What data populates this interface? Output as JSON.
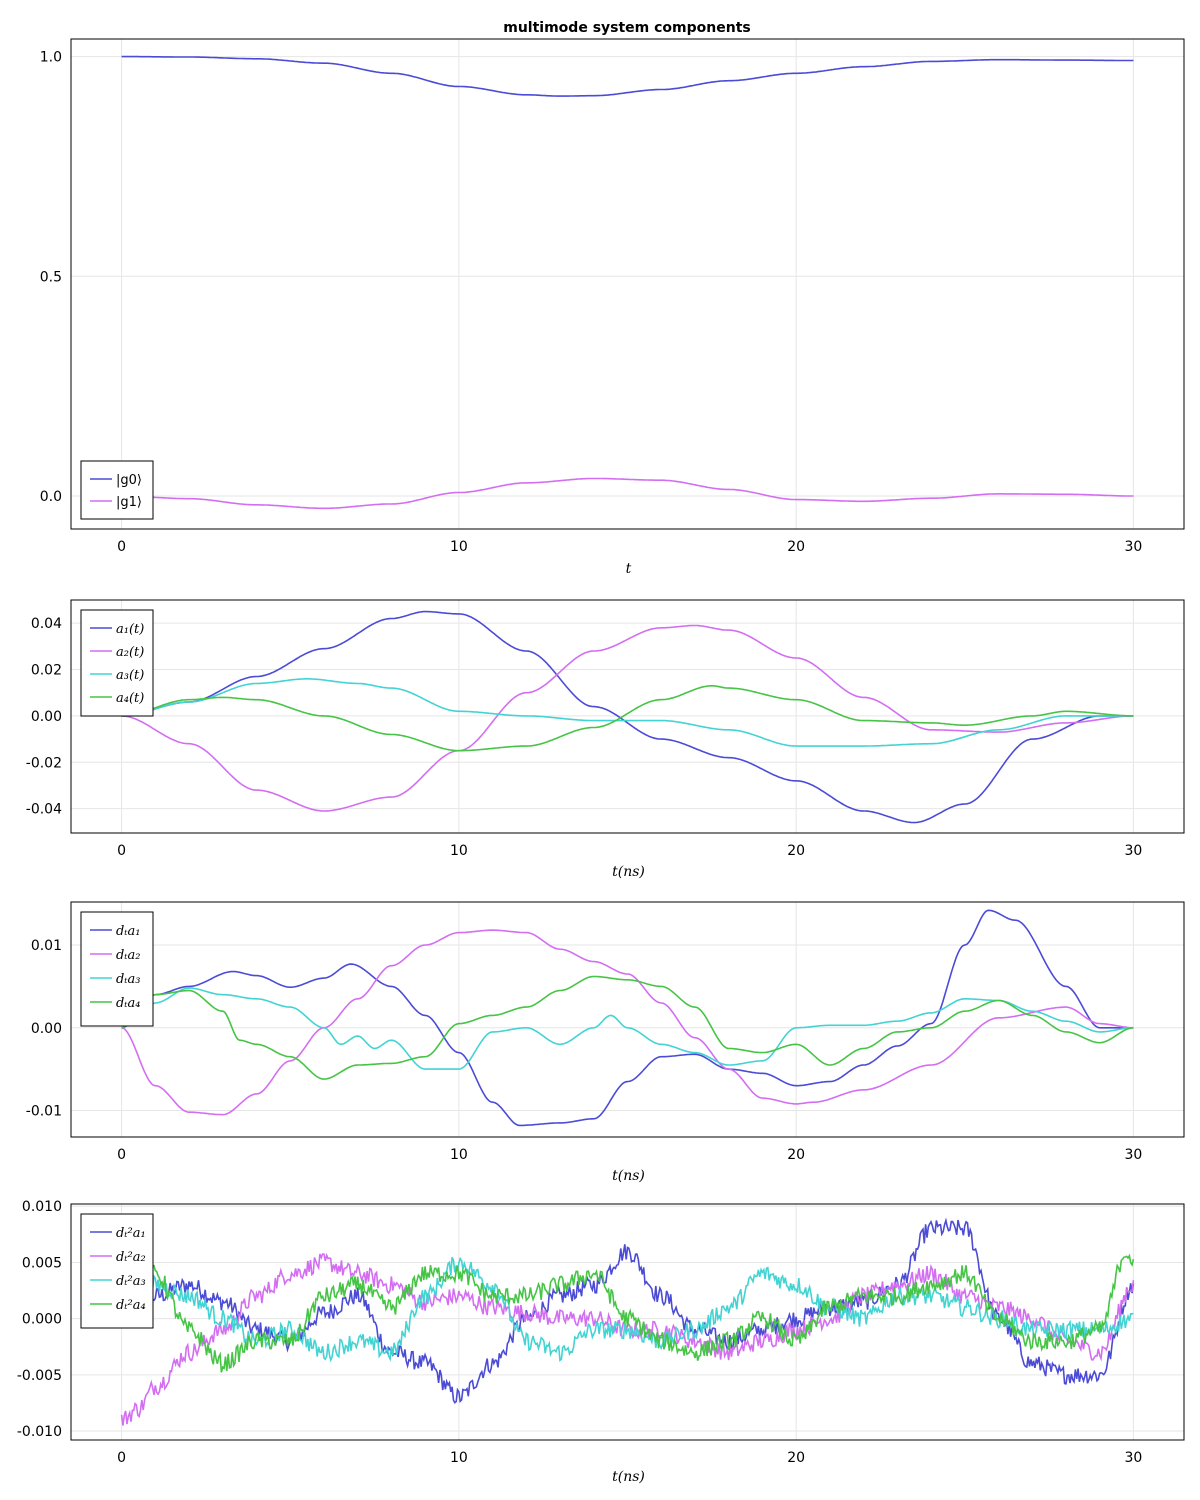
{
  "title": "multimode system components",
  "colors": {
    "blue": "#4b4bd6",
    "magenta": "#d36ef2",
    "cyan": "#43d3d3",
    "green": "#46c446"
  },
  "chart_data": [
    {
      "type": "line",
      "title": "multimode system components",
      "xlabel": "t",
      "ylabel": "",
      "xlim": [
        -1.5,
        31.5
      ],
      "ylim": [
        -0.075,
        1.04
      ],
      "xticks": [
        0,
        10,
        20,
        30
      ],
      "xtick_labels": [
        "0",
        "10",
        "20",
        "30"
      ],
      "yticks": [
        0.0,
        0.5,
        1.0
      ],
      "ytick_labels": [
        "0.0",
        "0.5",
        "1.0"
      ],
      "grid": true,
      "legend_position": "bottom-left",
      "series": [
        {
          "name": "|g0⟩",
          "color": "#4b4bd6",
          "x": [
            0,
            2,
            4,
            6,
            8,
            10,
            12,
            13,
            14,
            16,
            18,
            20,
            22,
            24,
            26,
            28,
            30
          ],
          "y": [
            1.0,
            0.999,
            0.995,
            0.985,
            0.962,
            0.932,
            0.913,
            0.91,
            0.911,
            0.925,
            0.945,
            0.962,
            0.977,
            0.989,
            0.993,
            0.992,
            0.991
          ]
        },
        {
          "name": "|g1⟩",
          "color": "#d36ef2",
          "x": [
            0,
            2,
            4,
            6,
            8,
            10,
            12,
            14,
            16,
            18,
            20,
            22,
            24,
            26,
            28,
            30
          ],
          "y": [
            0.0,
            -0.006,
            -0.02,
            -0.028,
            -0.018,
            0.008,
            0.03,
            0.04,
            0.036,
            0.015,
            -0.008,
            -0.012,
            -0.005,
            0.005,
            0.004,
            0.0
          ]
        }
      ]
    },
    {
      "type": "line",
      "xlabel": "t(ns)",
      "ylabel": "",
      "xlim": [
        -1.5,
        31.5
      ],
      "ylim": [
        -0.0505,
        0.05
      ],
      "xticks": [
        0,
        10,
        20,
        30
      ],
      "xtick_labels": [
        "0",
        "10",
        "20",
        "30"
      ],
      "yticks": [
        -0.04,
        -0.02,
        0.0,
        0.02,
        0.04
      ],
      "ytick_labels": [
        "-0.04",
        "-0.02",
        "0.00",
        "0.02",
        "0.04"
      ],
      "grid": true,
      "legend_position": "top-left",
      "series": [
        {
          "name": "a₁(t)",
          "color": "#4b4bd6",
          "x": [
            0,
            2,
            4,
            6,
            8,
            9,
            10,
            12,
            14,
            16,
            18,
            20,
            22,
            23.5,
            25,
            27,
            29,
            30
          ],
          "y": [
            0,
            0.006,
            0.017,
            0.029,
            0.042,
            0.045,
            0.044,
            0.028,
            0.004,
            -0.01,
            -0.018,
            -0.028,
            -0.041,
            -0.046,
            -0.038,
            -0.01,
            0,
            0
          ]
        },
        {
          "name": "a₂(t)",
          "color": "#d36ef2",
          "x": [
            0,
            2,
            4,
            6,
            8,
            10,
            12,
            14,
            16,
            17,
            18,
            20,
            22,
            24,
            26,
            28,
            30
          ],
          "y": [
            0,
            -0.012,
            -0.032,
            -0.041,
            -0.035,
            -0.015,
            0.01,
            0.028,
            0.038,
            0.039,
            0.037,
            0.025,
            0.008,
            -0.006,
            -0.007,
            -0.003,
            0
          ]
        },
        {
          "name": "a₃(t)",
          "color": "#43d3d3",
          "x": [
            0,
            2,
            4,
            5.5,
            7,
            8,
            10,
            12,
            14,
            16,
            18,
            20,
            22,
            24,
            26,
            28,
            30
          ],
          "y": [
            0,
            0.006,
            0.014,
            0.016,
            0.014,
            0.012,
            0.002,
            0.0,
            -0.002,
            -0.002,
            -0.006,
            -0.013,
            -0.013,
            -0.012,
            -0.006,
            0.0,
            0
          ]
        },
        {
          "name": "a₄(t)",
          "color": "#46c446",
          "x": [
            0,
            2,
            3,
            4,
            6,
            8,
            10,
            12,
            14,
            16,
            17.5,
            18,
            20,
            22,
            24,
            25,
            27,
            28,
            30
          ],
          "y": [
            0,
            0.007,
            0.008,
            0.007,
            0.0,
            -0.008,
            -0.015,
            -0.013,
            -0.005,
            0.007,
            0.013,
            0.012,
            0.007,
            -0.002,
            -0.003,
            -0.004,
            0.0,
            0.002,
            0
          ]
        }
      ]
    },
    {
      "type": "line",
      "xlabel": "t(ns)",
      "ylabel": "",
      "xlim": [
        -1.5,
        31.5
      ],
      "ylim": [
        -0.0132,
        0.0152
      ],
      "xticks": [
        0,
        10,
        20,
        30
      ],
      "xtick_labels": [
        "0",
        "10",
        "20",
        "30"
      ],
      "yticks": [
        -0.01,
        0.0,
        0.01
      ],
      "ytick_labels": [
        "-0.01",
        "0.00",
        "0.01"
      ],
      "grid": true,
      "legend_position": "top-left",
      "series": [
        {
          "name": "dₜa₁",
          "color": "#4b4bd6",
          "x": [
            0,
            1,
            2,
            3.3,
            4,
            5,
            6,
            6.8,
            8,
            9,
            10,
            11,
            11.8,
            13,
            14,
            15,
            16,
            17,
            18,
            19,
            20,
            21,
            22,
            23,
            24,
            25,
            25.7,
            26.5,
            28,
            29,
            30
          ],
          "y": [
            0,
            0.004,
            0.005,
            0.0068,
            0.0063,
            0.0049,
            0.006,
            0.0077,
            0.005,
            0.0015,
            -0.003,
            -0.009,
            -0.0118,
            -0.0115,
            -0.011,
            -0.0065,
            -0.0035,
            -0.0032,
            -0.005,
            -0.0055,
            -0.007,
            -0.0065,
            -0.0045,
            -0.0022,
            0.0005,
            0.01,
            0.0142,
            0.013,
            0.005,
            0.0,
            0
          ]
        },
        {
          "name": "dₜa₂",
          "color": "#d36ef2",
          "x": [
            0,
            1,
            2,
            3,
            4,
            5,
            6,
            7,
            8,
            9,
            10,
            11,
            12,
            13,
            14,
            15,
            16,
            17,
            18,
            19,
            20,
            20.5,
            22,
            24,
            26,
            28,
            29,
            30
          ],
          "y": [
            0,
            -0.007,
            -0.0102,
            -0.0105,
            -0.008,
            -0.004,
            0.0,
            0.0035,
            0.0075,
            0.01,
            0.0115,
            0.0118,
            0.0115,
            0.0095,
            0.008,
            0.0065,
            0.003,
            -0.0012,
            -0.005,
            -0.0085,
            -0.0092,
            -0.009,
            -0.0075,
            -0.0045,
            0.0012,
            0.0025,
            0.0005,
            0
          ]
        },
        {
          "name": "dₜa₃",
          "color": "#43d3d3",
          "x": [
            0,
            0.5,
            1,
            2,
            3,
            4,
            5,
            6,
            6.5,
            7,
            7.5,
            8,
            9,
            10,
            11,
            12,
            13,
            14,
            14.5,
            15,
            16,
            17,
            18,
            19,
            20,
            21,
            22,
            23,
            24,
            25,
            26,
            27,
            28,
            29,
            30
          ],
          "y": [
            0,
            0.0012,
            0.003,
            0.0048,
            0.004,
            0.0035,
            0.0025,
            0.0,
            -0.002,
            -0.001,
            -0.0025,
            -0.0015,
            -0.005,
            -0.005,
            -0.0005,
            0.0,
            -0.002,
            0.0,
            0.0015,
            0.0,
            -0.002,
            -0.003,
            -0.0045,
            -0.004,
            0.0,
            0.0003,
            0.0003,
            0.0008,
            0.0018,
            0.0035,
            0.0033,
            0.002,
            0.0008,
            -0.0005,
            0
          ]
        },
        {
          "name": "dₜa₄",
          "color": "#46c446",
          "x": [
            0,
            1,
            2,
            3,
            3.5,
            4,
            5,
            6,
            7,
            8,
            9,
            10,
            11,
            12,
            13,
            14,
            15,
            16,
            17,
            18,
            19,
            20,
            21,
            22,
            23,
            24,
            25,
            26,
            27,
            28,
            29,
            30
          ],
          "y": [
            0,
            0.004,
            0.0045,
            0.002,
            -0.0015,
            -0.002,
            -0.0035,
            -0.0062,
            -0.0045,
            -0.0043,
            -0.0035,
            0.0005,
            0.0015,
            0.0025,
            0.0045,
            0.0062,
            0.0058,
            0.005,
            0.0025,
            -0.0025,
            -0.003,
            -0.002,
            -0.0045,
            -0.0025,
            -0.0005,
            0.0,
            0.002,
            0.0033,
            0.0015,
            -0.0005,
            -0.0018,
            0
          ]
        }
      ]
    },
    {
      "type": "line",
      "xlabel": "t(ns)",
      "ylabel": "",
      "xlim": [
        -1.5,
        31.5
      ],
      "ylim": [
        -0.0108,
        0.0102
      ],
      "xticks": [
        0,
        10,
        20,
        30
      ],
      "xtick_labels": [
        "0",
        "10",
        "20",
        "30"
      ],
      "yticks": [
        -0.01,
        -0.005,
        0.0,
        0.005,
        0.01
      ],
      "ytick_labels": [
        "-0.010",
        "-0.005",
        "0.000",
        "0.005",
        "0.010"
      ],
      "grid": true,
      "legend_position": "top-left",
      "series": [
        {
          "name": "dₜ²a₁",
          "color": "#4b4bd6",
          "x": [
            0,
            1,
            2,
            3,
            4,
            5,
            6,
            7,
            8,
            9,
            10,
            11,
            12,
            13,
            14,
            15,
            16,
            17,
            18,
            19,
            20,
            21,
            22,
            23,
            24,
            25,
            26,
            27,
            28,
            29,
            30
          ],
          "y": [
            0,
            0.002,
            0.003,
            0.0015,
            -0.001,
            -0.002,
            0.0005,
            0.002,
            -0.003,
            -0.004,
            -0.007,
            -0.004,
            0.0,
            0.002,
            0.003,
            0.006,
            0.002,
            -0.001,
            -0.002,
            -0.001,
            0.0,
            0.001,
            0.0015,
            0.003,
            0.008,
            0.008,
            0.0,
            -0.004,
            -0.005,
            -0.005,
            0.003
          ]
        },
        {
          "name": "dₜ²a₂",
          "color": "#d36ef2",
          "x": [
            0,
            0.5,
            1,
            2,
            3,
            4,
            5,
            6,
            7,
            8,
            9,
            10,
            11,
            12,
            13,
            14,
            15,
            16,
            17,
            18,
            19,
            20,
            21,
            22,
            23,
            24,
            25,
            26,
            27,
            28,
            29,
            30
          ],
          "y": [
            -0.009,
            -0.008,
            -0.006,
            -0.003,
            -0.001,
            0.002,
            0.004,
            0.005,
            0.004,
            0.003,
            0.0015,
            0.002,
            0.001,
            0.0005,
            0.0,
            0.0,
            -0.001,
            -0.001,
            -0.002,
            -0.003,
            -0.002,
            -0.001,
            0.0,
            0.002,
            0.003,
            0.004,
            0.002,
            0.001,
            0.0,
            -0.002,
            -0.003,
            0.003
          ]
        },
        {
          "name": "dₜ²a₃",
          "color": "#43d3d3",
          "x": [
            0,
            1,
            2,
            3,
            4,
            5,
            6,
            7,
            8,
            9,
            10,
            11,
            12,
            13,
            14,
            15,
            16,
            17,
            18,
            19,
            20,
            21,
            22,
            23,
            24,
            25,
            26,
            27,
            28,
            29,
            30
          ],
          "y": [
            0,
            0.003,
            0.002,
            0.0,
            -0.002,
            -0.001,
            -0.003,
            -0.002,
            -0.003,
            0.002,
            0.005,
            0.003,
            -0.002,
            -0.003,
            -0.001,
            -0.001,
            -0.002,
            -0.001,
            0.001,
            0.004,
            0.003,
            0.001,
            0.0,
            0.002,
            0.002,
            0.001,
            0.0,
            -0.001,
            -0.001,
            -0.001,
            0.0
          ]
        },
        {
          "name": "dₜ²a₄",
          "color": "#46c446",
          "x": [
            0,
            1,
            2,
            3,
            4,
            5,
            6,
            7,
            8,
            9,
            10,
            11,
            12,
            13,
            14,
            15,
            16,
            17,
            18,
            19,
            20,
            21,
            22,
            23,
            24,
            25,
            26,
            27,
            28,
            29,
            29.8,
            30
          ],
          "y": [
            0,
            0.004,
            -0.001,
            -0.004,
            -0.002,
            -0.002,
            0.002,
            0.003,
            0.001,
            0.004,
            0.004,
            0.002,
            0.002,
            0.003,
            0.004,
            0.0,
            -0.002,
            -0.003,
            -0.002,
            0.0,
            -0.002,
            0.001,
            0.002,
            0.002,
            0.003,
            0.004,
            0.0,
            -0.002,
            -0.002,
            -0.001,
            0.006,
            0.005
          ]
        }
      ]
    }
  ]
}
